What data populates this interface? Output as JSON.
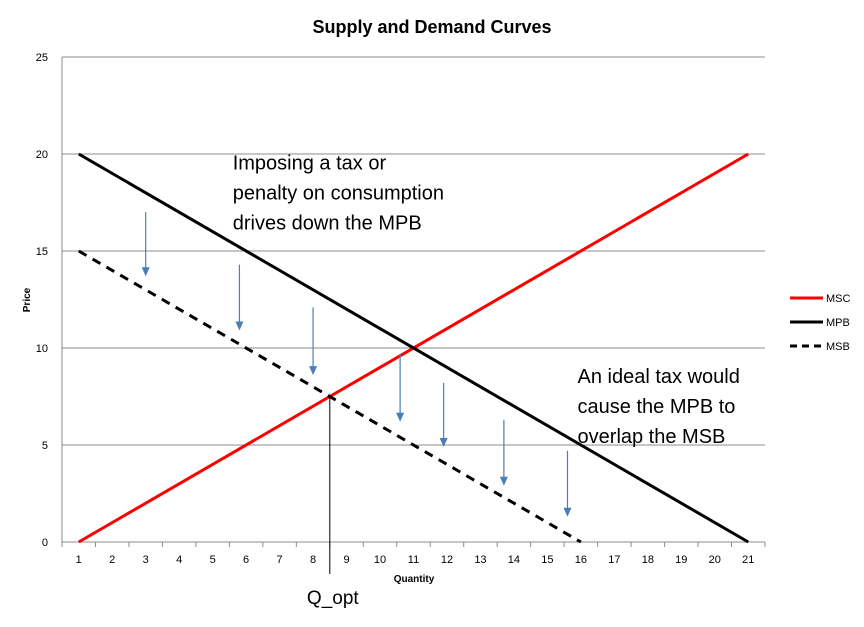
{
  "chart_data": {
    "type": "line",
    "title": "Supply and Demand Curves",
    "xlabel": "Quantity",
    "ylabel": "Price",
    "x": [
      1,
      2,
      3,
      4,
      5,
      6,
      7,
      8,
      9,
      10,
      11,
      12,
      13,
      14,
      15,
      16,
      17,
      18,
      19,
      20,
      21
    ],
    "xlim": [
      1,
      21
    ],
    "ylim": [
      0,
      25
    ],
    "yticks": [
      0,
      5,
      10,
      15,
      20,
      25
    ],
    "grid": "horizontal",
    "legend_position": "right",
    "series": [
      {
        "name": "MSC",
        "color": "#ff0000",
        "style": "solid",
        "points": [
          [
            1,
            0
          ],
          [
            21,
            20
          ]
        ]
      },
      {
        "name": "MPB",
        "color": "#000000",
        "style": "solid",
        "points": [
          [
            1,
            20
          ],
          [
            21,
            0
          ]
        ]
      },
      {
        "name": "MSB",
        "color": "#000000",
        "style": "dashed",
        "points": [
          [
            1,
            15
          ],
          [
            16,
            0
          ]
        ]
      }
    ],
    "annotations": [
      {
        "lines": [
          "Imposing a  tax or",
          "penalty on consumption",
          "drives down the MPB"
        ],
        "anchor": [
          5.6,
          19.2
        ]
      },
      {
        "lines": [
          "An ideal tax would",
          "cause the MPB to",
          "overlap the MSB"
        ],
        "anchor": [
          15.9,
          8.2
        ]
      }
    ],
    "arrows": [
      {
        "x": 3,
        "from": 17,
        "to": 13.7
      },
      {
        "x": 5.8,
        "from": 14.3,
        "to": 10.9
      },
      {
        "x": 8,
        "from": 12.1,
        "to": 8.6
      },
      {
        "x": 10.6,
        "from": 9.7,
        "to": 6.2
      },
      {
        "x": 11.9,
        "from": 8.2,
        "to": 4.9
      },
      {
        "x": 13.7,
        "from": 6.3,
        "to": 2.9
      },
      {
        "x": 15.6,
        "from": 4.7,
        "to": 1.3
      }
    ],
    "qopt": {
      "label": "Q_opt",
      "x": 8.5,
      "y": 7.5
    }
  }
}
